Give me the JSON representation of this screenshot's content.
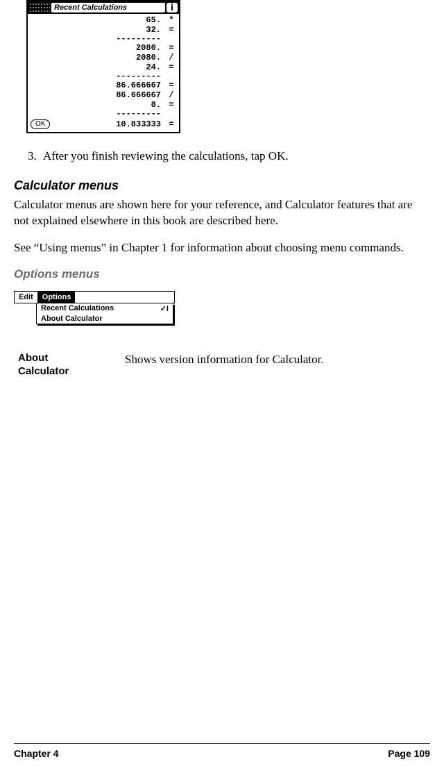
{
  "calcShot": {
    "title": "Recent Calculations",
    "info": "i",
    "lines": [
      {
        "num": "65.",
        "op": "*"
      },
      {
        "num": "32.",
        "op": "="
      }
    ],
    "sep": "---------",
    "lines2": [
      {
        "num": "2080.",
        "op": "="
      },
      {
        "num": "2080.",
        "op": "/"
      },
      {
        "num": "24.",
        "op": "="
      }
    ],
    "lines3": [
      {
        "num": "86.666667",
        "op": "="
      },
      {
        "num": "86.666667",
        "op": "/"
      },
      {
        "num": "8.",
        "op": "="
      }
    ],
    "last": {
      "num": "10.833333",
      "op": "="
    },
    "ok": "OK"
  },
  "step": {
    "n": "3.",
    "text": "After you finish reviewing the calculations, tap OK."
  },
  "h2": "Calculator menus",
  "para1": "Calculator menus are shown here for your reference, and Calculator features that are not explained elsewhere in this book are described here.",
  "para2": "See “Using menus” in Chapter 1 for information about choosing menu commands.",
  "h3": "Options menus",
  "menuShot": {
    "tabInactive": "Edit",
    "tabActive": "Options",
    "item1": {
      "label": "Recent Calculations",
      "shortcut": "✓I"
    },
    "item2": {
      "label": "About Calculator",
      "shortcut": ""
    }
  },
  "def": {
    "term1": "About",
    "term2": "Calculator",
    "desc": "Shows version information for Calculator."
  },
  "footer": {
    "left": "Chapter 4",
    "right": "Page 109"
  }
}
